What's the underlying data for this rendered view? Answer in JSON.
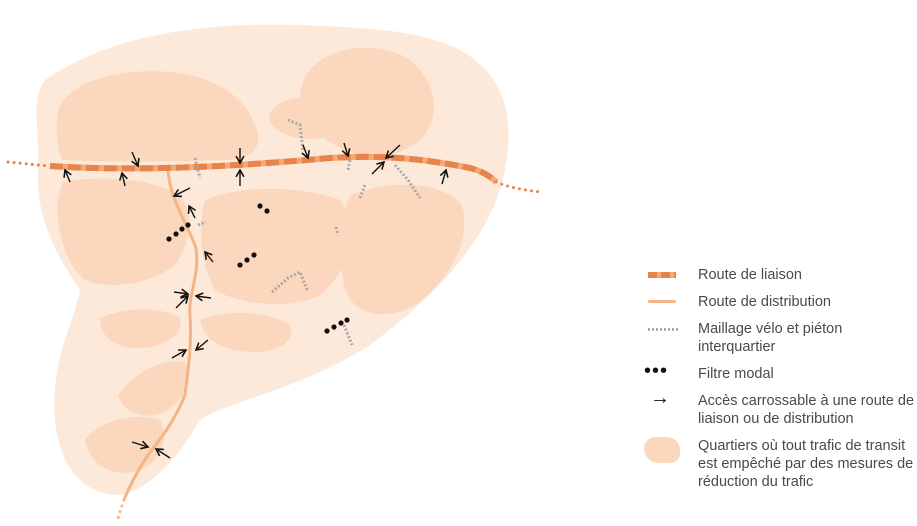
{
  "legend": {
    "items": [
      {
        "key": "route-liaison",
        "label": "Route de liaison"
      },
      {
        "key": "route-distribution",
        "label": "Route de distribution"
      },
      {
        "key": "maillage",
        "label": "Maillage vélo et piéton interquartier"
      },
      {
        "key": "filtre-modal",
        "label": "Filtre modal"
      },
      {
        "key": "acces",
        "label": "Accès carrossable à une route de liaison ou de distribution"
      },
      {
        "key": "quartiers",
        "label": "Quartiers où tout trafic de transit est empêché par des mesures de réduction du trafic"
      }
    ]
  },
  "colors": {
    "outer_area": "#fde9da",
    "quartier": "#fbd7bd",
    "route_liaison_dark": "#e8834a",
    "route_liaison_light": "#f3a97a",
    "route_distribution": "#f5b486",
    "maillage": "#a8a8a8",
    "filtre": "#111111",
    "arrow": "#111111",
    "legend_text": "#4a4a4a"
  },
  "icons": [
    "arrow-right-icon",
    "three-dots-icon"
  ]
}
